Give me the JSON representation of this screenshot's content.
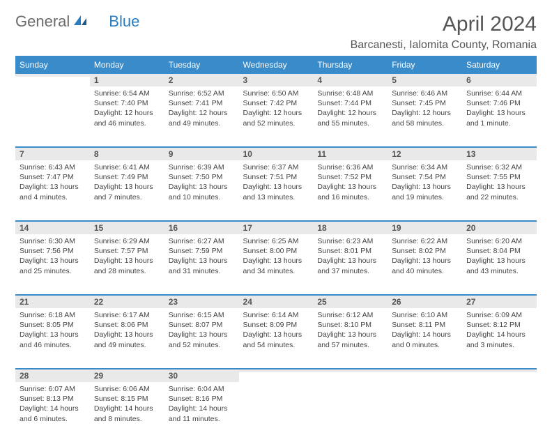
{
  "brand": {
    "part1": "General",
    "part2": "Blue"
  },
  "title": "April 2024",
  "location": "Barcanesti, Ialomita County, Romania",
  "headers": [
    "Sunday",
    "Monday",
    "Tuesday",
    "Wednesday",
    "Thursday",
    "Friday",
    "Saturday"
  ],
  "colors": {
    "header_bg": "#3a8bc9",
    "header_fg": "#ffffff",
    "daynum_bg": "#e9e9e9",
    "band": "#3a8bc9",
    "text": "#555555",
    "brand_blue": "#2a7cc0"
  },
  "weeks": [
    [
      {
        "n": "",
        "sunrise": "",
        "sunset": "",
        "daylight": ""
      },
      {
        "n": "1",
        "sunrise": "Sunrise: 6:54 AM",
        "sunset": "Sunset: 7:40 PM",
        "daylight": "Daylight: 12 hours and 46 minutes."
      },
      {
        "n": "2",
        "sunrise": "Sunrise: 6:52 AM",
        "sunset": "Sunset: 7:41 PM",
        "daylight": "Daylight: 12 hours and 49 minutes."
      },
      {
        "n": "3",
        "sunrise": "Sunrise: 6:50 AM",
        "sunset": "Sunset: 7:42 PM",
        "daylight": "Daylight: 12 hours and 52 minutes."
      },
      {
        "n": "4",
        "sunrise": "Sunrise: 6:48 AM",
        "sunset": "Sunset: 7:44 PM",
        "daylight": "Daylight: 12 hours and 55 minutes."
      },
      {
        "n": "5",
        "sunrise": "Sunrise: 6:46 AM",
        "sunset": "Sunset: 7:45 PM",
        "daylight": "Daylight: 12 hours and 58 minutes."
      },
      {
        "n": "6",
        "sunrise": "Sunrise: 6:44 AM",
        "sunset": "Sunset: 7:46 PM",
        "daylight": "Daylight: 13 hours and 1 minute."
      }
    ],
    [
      {
        "n": "7",
        "sunrise": "Sunrise: 6:43 AM",
        "sunset": "Sunset: 7:47 PM",
        "daylight": "Daylight: 13 hours and 4 minutes."
      },
      {
        "n": "8",
        "sunrise": "Sunrise: 6:41 AM",
        "sunset": "Sunset: 7:49 PM",
        "daylight": "Daylight: 13 hours and 7 minutes."
      },
      {
        "n": "9",
        "sunrise": "Sunrise: 6:39 AM",
        "sunset": "Sunset: 7:50 PM",
        "daylight": "Daylight: 13 hours and 10 minutes."
      },
      {
        "n": "10",
        "sunrise": "Sunrise: 6:37 AM",
        "sunset": "Sunset: 7:51 PM",
        "daylight": "Daylight: 13 hours and 13 minutes."
      },
      {
        "n": "11",
        "sunrise": "Sunrise: 6:36 AM",
        "sunset": "Sunset: 7:52 PM",
        "daylight": "Daylight: 13 hours and 16 minutes."
      },
      {
        "n": "12",
        "sunrise": "Sunrise: 6:34 AM",
        "sunset": "Sunset: 7:54 PM",
        "daylight": "Daylight: 13 hours and 19 minutes."
      },
      {
        "n": "13",
        "sunrise": "Sunrise: 6:32 AM",
        "sunset": "Sunset: 7:55 PM",
        "daylight": "Daylight: 13 hours and 22 minutes."
      }
    ],
    [
      {
        "n": "14",
        "sunrise": "Sunrise: 6:30 AM",
        "sunset": "Sunset: 7:56 PM",
        "daylight": "Daylight: 13 hours and 25 minutes."
      },
      {
        "n": "15",
        "sunrise": "Sunrise: 6:29 AM",
        "sunset": "Sunset: 7:57 PM",
        "daylight": "Daylight: 13 hours and 28 minutes."
      },
      {
        "n": "16",
        "sunrise": "Sunrise: 6:27 AM",
        "sunset": "Sunset: 7:59 PM",
        "daylight": "Daylight: 13 hours and 31 minutes."
      },
      {
        "n": "17",
        "sunrise": "Sunrise: 6:25 AM",
        "sunset": "Sunset: 8:00 PM",
        "daylight": "Daylight: 13 hours and 34 minutes."
      },
      {
        "n": "18",
        "sunrise": "Sunrise: 6:23 AM",
        "sunset": "Sunset: 8:01 PM",
        "daylight": "Daylight: 13 hours and 37 minutes."
      },
      {
        "n": "19",
        "sunrise": "Sunrise: 6:22 AM",
        "sunset": "Sunset: 8:02 PM",
        "daylight": "Daylight: 13 hours and 40 minutes."
      },
      {
        "n": "20",
        "sunrise": "Sunrise: 6:20 AM",
        "sunset": "Sunset: 8:04 PM",
        "daylight": "Daylight: 13 hours and 43 minutes."
      }
    ],
    [
      {
        "n": "21",
        "sunrise": "Sunrise: 6:18 AM",
        "sunset": "Sunset: 8:05 PM",
        "daylight": "Daylight: 13 hours and 46 minutes."
      },
      {
        "n": "22",
        "sunrise": "Sunrise: 6:17 AM",
        "sunset": "Sunset: 8:06 PM",
        "daylight": "Daylight: 13 hours and 49 minutes."
      },
      {
        "n": "23",
        "sunrise": "Sunrise: 6:15 AM",
        "sunset": "Sunset: 8:07 PM",
        "daylight": "Daylight: 13 hours and 52 minutes."
      },
      {
        "n": "24",
        "sunrise": "Sunrise: 6:14 AM",
        "sunset": "Sunset: 8:09 PM",
        "daylight": "Daylight: 13 hours and 54 minutes."
      },
      {
        "n": "25",
        "sunrise": "Sunrise: 6:12 AM",
        "sunset": "Sunset: 8:10 PM",
        "daylight": "Daylight: 13 hours and 57 minutes."
      },
      {
        "n": "26",
        "sunrise": "Sunrise: 6:10 AM",
        "sunset": "Sunset: 8:11 PM",
        "daylight": "Daylight: 14 hours and 0 minutes."
      },
      {
        "n": "27",
        "sunrise": "Sunrise: 6:09 AM",
        "sunset": "Sunset: 8:12 PM",
        "daylight": "Daylight: 14 hours and 3 minutes."
      }
    ],
    [
      {
        "n": "28",
        "sunrise": "Sunrise: 6:07 AM",
        "sunset": "Sunset: 8:13 PM",
        "daylight": "Daylight: 14 hours and 6 minutes."
      },
      {
        "n": "29",
        "sunrise": "Sunrise: 6:06 AM",
        "sunset": "Sunset: 8:15 PM",
        "daylight": "Daylight: 14 hours and 8 minutes."
      },
      {
        "n": "30",
        "sunrise": "Sunrise: 6:04 AM",
        "sunset": "Sunset: 8:16 PM",
        "daylight": "Daylight: 14 hours and 11 minutes."
      },
      {
        "n": "",
        "sunrise": "",
        "sunset": "",
        "daylight": ""
      },
      {
        "n": "",
        "sunrise": "",
        "sunset": "",
        "daylight": ""
      },
      {
        "n": "",
        "sunrise": "",
        "sunset": "",
        "daylight": ""
      },
      {
        "n": "",
        "sunrise": "",
        "sunset": "",
        "daylight": ""
      }
    ]
  ]
}
